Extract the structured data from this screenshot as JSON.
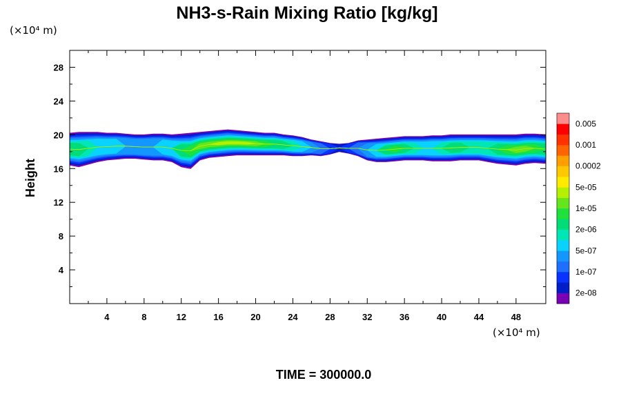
{
  "chart_data": {
    "type": "heatmap",
    "title": "NH3-s-Rain Mixing Ratio [kg/kg]",
    "ylabel": "Height",
    "x_unit": "(×10⁴ m)",
    "y_unit": "(×10⁴ m)",
    "footer": "TIME = 300000.0",
    "xlim": [
      0,
      51.2
    ],
    "ylim": [
      0,
      30
    ],
    "x_ticks": [
      4,
      8,
      12,
      16,
      20,
      24,
      28,
      32,
      36,
      40,
      44,
      48
    ],
    "x_tick_labels": [
      "4",
      "8",
      "12",
      "16",
      "20",
      "24",
      "28",
      "32",
      "36",
      "40",
      "44",
      "48"
    ],
    "y_ticks": [
      4,
      8,
      12,
      16,
      20,
      24,
      28
    ],
    "y_tick_labels": [
      "4",
      "8",
      "12",
      "16",
      "20",
      "24",
      "28"
    ],
    "grid": false,
    "colorbar": {
      "placement": "right",
      "levels": [
        "2e-08",
        "1e-07",
        "5e-07",
        "2e-06",
        "1e-05",
        "5e-05",
        "0.0002",
        "0.001",
        "0.005"
      ],
      "colors": [
        "#7a00b4",
        "#001ec8",
        "#0a32ff",
        "#1e6eff",
        "#1496ff",
        "#0ad2ff",
        "#00e6b4",
        "#00dc78",
        "#1ee13c",
        "#64e61e",
        "#b4f000",
        "#ffeb00",
        "#ffc800",
        "#ffa000",
        "#ff6400",
        "#ff3200",
        "#ff0000",
        "#ff8c8c"
      ]
    },
    "profile": {
      "x": [
        0,
        1,
        2,
        3,
        4,
        5,
        6,
        7,
        8,
        9,
        10,
        11,
        12,
        13,
        14,
        15,
        16,
        17,
        18,
        19,
        20,
        21,
        22,
        23,
        24,
        25,
        26,
        27,
        28,
        29,
        30,
        31,
        32,
        33,
        34,
        35,
        36,
        37,
        38,
        39,
        40,
        41,
        42,
        43,
        44,
        45,
        46,
        47,
        48,
        49,
        50,
        51.2
      ],
      "top": [
        20.2,
        20.3,
        20.3,
        20.3,
        20.2,
        20.2,
        20.1,
        20.0,
        20.0,
        20.1,
        20.1,
        20.0,
        20.1,
        20.2,
        20.3,
        20.4,
        20.5,
        20.6,
        20.5,
        20.4,
        20.3,
        20.2,
        20.2,
        20.0,
        19.9,
        19.7,
        19.4,
        19.2,
        19.0,
        18.9,
        19.0,
        19.3,
        19.4,
        19.5,
        19.6,
        19.7,
        19.8,
        19.8,
        19.8,
        19.9,
        19.9,
        20.0,
        20.0,
        20.0,
        20.0,
        20.0,
        20.0,
        20.0,
        20.0,
        20.1,
        20.1,
        20.0
      ],
      "bottom": [
        16.4,
        16.2,
        16.5,
        16.8,
        17.0,
        17.1,
        17.2,
        17.2,
        17.1,
        17.0,
        17.0,
        16.8,
        16.2,
        16.0,
        17.0,
        17.3,
        17.4,
        17.5,
        17.6,
        17.6,
        17.6,
        17.6,
        17.6,
        17.6,
        17.5,
        17.5,
        17.6,
        17.5,
        17.7,
        18.0,
        17.8,
        17.5,
        17.0,
        16.8,
        16.8,
        16.9,
        17.0,
        17.0,
        17.0,
        16.9,
        16.9,
        16.9,
        17.0,
        17.0,
        17.0,
        16.8,
        16.6,
        16.5,
        16.4,
        16.6,
        16.7,
        16.6
      ],
      "intensity": [
        5,
        5,
        4,
        3,
        3,
        3,
        2,
        2,
        2,
        2,
        3,
        3,
        5,
        6,
        7,
        7,
        8,
        8,
        8,
        8,
        7,
        6,
        5,
        5,
        4,
        3,
        2,
        1,
        0,
        -1,
        0,
        1,
        2,
        3,
        5,
        6,
        5,
        4,
        3,
        3,
        4,
        5,
        5,
        4,
        4,
        4,
        5,
        6,
        7,
        7,
        6,
        5
      ]
    }
  }
}
